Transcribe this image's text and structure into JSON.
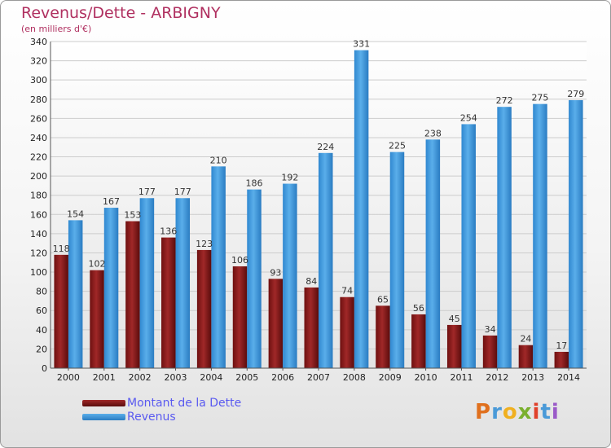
{
  "chart_data": {
    "type": "bar",
    "title": "Revenus/Dette - ARBIGNY",
    "subtitle": "(en milliers d'€)",
    "categories": [
      "2000",
      "2001",
      "2002",
      "2003",
      "2004",
      "2005",
      "2006",
      "2007",
      "2008",
      "2009",
      "2010",
      "2011",
      "2012",
      "2013",
      "2014"
    ],
    "series": [
      {
        "name": "Montant de la Dette",
        "color": "#8b1a1a",
        "values": [
          118,
          102,
          153,
          136,
          123,
          106,
          93,
          84,
          74,
          65,
          56,
          45,
          34,
          24,
          17
        ]
      },
      {
        "name": "Revenus",
        "color": "#3a95dc",
        "values": [
          154,
          167,
          177,
          177,
          210,
          186,
          192,
          224,
          331,
          225,
          238,
          254,
          272,
          275,
          279
        ]
      }
    ],
    "ylim": [
      0,
      340
    ],
    "yticks": [
      0,
      20,
      40,
      60,
      80,
      100,
      120,
      140,
      160,
      180,
      200,
      220,
      240,
      260,
      280,
      300,
      320,
      340
    ],
    "grid": true,
    "legend_position": "bottom-left",
    "xlabel": "",
    "ylabel": ""
  },
  "legend": {
    "dette_label": "Montant de la Dette",
    "revenus_label": "Revenus"
  },
  "logo": {
    "letters": [
      "P",
      "r",
      "o",
      "x",
      "i",
      "t",
      "i"
    ]
  }
}
